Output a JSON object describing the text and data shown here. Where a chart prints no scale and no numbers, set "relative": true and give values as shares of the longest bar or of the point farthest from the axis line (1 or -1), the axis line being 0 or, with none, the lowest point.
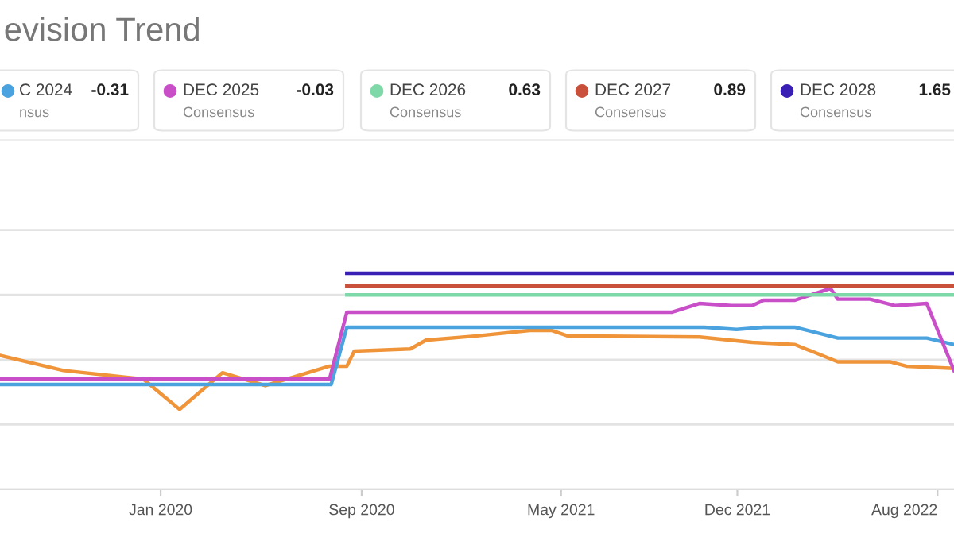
{
  "chart_data": {
    "type": "line",
    "title": "evision Trend",
    "relative": true,
    "grid": "y",
    "legend": "top",
    "marker": "none",
    "line_style": "solid",
    "xlim": [
      "2019-06-20",
      "2022-08-21"
    ],
    "xticks": [
      {
        "value": "2020-01-01",
        "label": "Jan 2020"
      },
      {
        "value": "2020-09-01",
        "label": "Sep 2020"
      },
      {
        "value": "2021-05-01",
        "label": "May 2021"
      },
      {
        "value": "2021-12-01",
        "label": "Dec 2021"
      },
      {
        "value": "2022-08-01",
        "label": "Aug 2022"
      }
    ],
    "annotations": [
      "-0.31",
      "nsus",
      "-0.03",
      "Consensus",
      "0.63",
      "Consensus",
      "0.89",
      "Consensus",
      "1.65",
      "Consensus"
    ],
    "series": [
      {
        "color": "#f0943a",
        "x": [
          "2019-06-20",
          "2019-09-05",
          "2019-12-11",
          "2020-01-24",
          "2020-03-16",
          "2020-05-07",
          "2020-07-24",
          "2020-08-14",
          "2020-08-23",
          "2020-10-30",
          "2020-11-18",
          "2021-01-19",
          "2021-03-24",
          "2021-04-20",
          "2021-05-09",
          "2021-10-16",
          "2021-12-19",
          "2022-02-09",
          "2022-04-02",
          "2022-06-05",
          "2022-06-24",
          "2022-08-21"
        ],
        "values": [
          0.62,
          0.55,
          0.51,
          0.37,
          0.54,
          0.48,
          0.57,
          0.57,
          0.64,
          0.65,
          0.69,
          0.71,
          0.735,
          0.735,
          0.71,
          0.705,
          0.68,
          0.67,
          0.59,
          0.59,
          0.57,
          0.56
        ]
      },
      {
        "name": "C 2024",
        "color": "#4aa3df",
        "x": [
          "2019-06-20",
          "2020-07-26",
          "2020-08-14",
          "2021-10-22",
          "2021-11-30",
          "2022-01-02",
          "2022-02-09",
          "2022-04-02",
          "2022-07-19",
          "2022-08-21"
        ],
        "values": [
          0.485,
          0.485,
          0.75,
          0.75,
          0.74,
          0.75,
          0.75,
          0.7,
          0.7,
          0.67
        ]
      },
      {
        "name": "DEC 2025",
        "color": "#c84fc8",
        "x": [
          "2019-06-20",
          "2020-07-24",
          "2020-08-14",
          "2021-09-13",
          "2021-10-16",
          "2021-11-24",
          "2021-12-19",
          "2022-01-02",
          "2022-02-09",
          "2022-03-24",
          "2022-04-02",
          "2022-05-11",
          "2022-06-11",
          "2022-07-19",
          "2022-08-21"
        ],
        "values": [
          0.51,
          0.51,
          0.82,
          0.82,
          0.86,
          0.85,
          0.85,
          0.875,
          0.875,
          0.93,
          0.88,
          0.88,
          0.85,
          0.86,
          0.55
        ]
      },
      {
        "name": "DEC 2026",
        "color": "#7fd8a8",
        "x": [
          "2020-08-14",
          "2022-08-21"
        ],
        "values": [
          0.9,
          0.9
        ]
      },
      {
        "name": "DEC 2027",
        "color": "#c9503a",
        "x": [
          "2020-08-14",
          "2022-08-21"
        ],
        "values": [
          0.94,
          0.94
        ]
      },
      {
        "name": "DEC 2028",
        "color": "#3a1fb5",
        "x": [
          "2020-08-14",
          "2022-08-21"
        ],
        "values": [
          1,
          1
        ]
      }
    ]
  }
}
